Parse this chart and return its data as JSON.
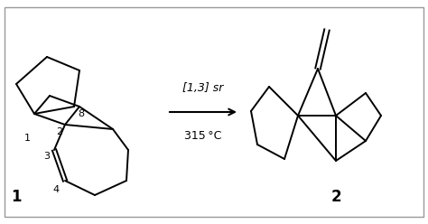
{
  "background_color": "#ffffff",
  "reaction_label_line1": "[1,3] sr",
  "reaction_label_line2": "315 °C",
  "compound1_label": "1",
  "compound2_label": "2",
  "figsize": [
    4.74,
    2.48
  ],
  "dpi": 100
}
